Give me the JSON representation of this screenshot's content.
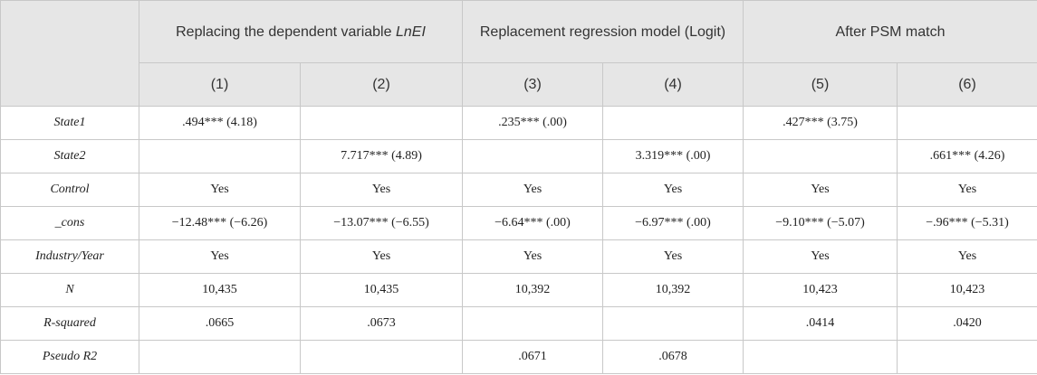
{
  "groups": [
    {
      "label": "Replacing the dependent variable",
      "label_italic": "LnEI"
    },
    {
      "label": "Replacement regression model (Logit)"
    },
    {
      "label": "After PSM match"
    }
  ],
  "columns": [
    "(1)",
    "(2)",
    "(3)",
    "(4)",
    "(5)",
    "(6)"
  ],
  "rows": [
    {
      "label": "State1",
      "cells": [
        ".494*** (4.18)",
        "",
        ".235*** (.00)",
        "",
        ".427*** (3.75)",
        ""
      ]
    },
    {
      "label": "State2",
      "cells": [
        "",
        "7.717*** (4.89)",
        "",
        "3.319*** (.00)",
        "",
        ".661*** (4.26)"
      ]
    },
    {
      "label": "Control",
      "cells": [
        "Yes",
        "Yes",
        "Yes",
        "Yes",
        "Yes",
        "Yes"
      ]
    },
    {
      "label": "_cons",
      "cells": [
        "−12.48*** (−6.26)",
        "−13.07*** (−6.55)",
        "−6.64*** (.00)",
        "−6.97*** (.00)",
        "−9.10*** (−5.07)",
        "−.96*** (−5.31)"
      ]
    },
    {
      "label": "Industry/Year",
      "cells": [
        "Yes",
        "Yes",
        "Yes",
        "Yes",
        "Yes",
        "Yes"
      ]
    },
    {
      "label": "N",
      "cells": [
        "10,435",
        "10,435",
        "10,392",
        "10,392",
        "10,423",
        "10,423"
      ]
    },
    {
      "label": "R-squared",
      "cells": [
        ".0665",
        ".0673",
        "",
        "",
        ".0414",
        ".0420"
      ]
    },
    {
      "label": "Pseudo R2",
      "cells": [
        "",
        "",
        ".0671",
        ".0678",
        "",
        ""
      ]
    }
  ]
}
